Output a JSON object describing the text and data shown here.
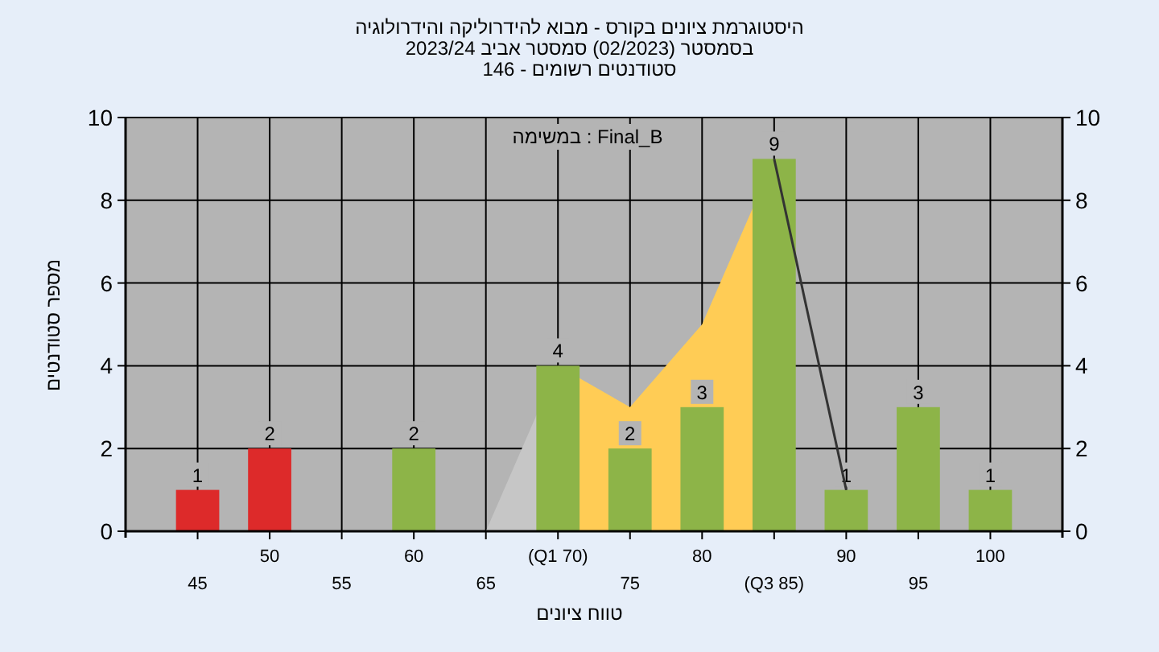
{
  "chart_data": {
    "type": "bar",
    "title": "היסטוגרמת ציונים בקורס - מבוא להידרוליקה והידרולוגיה",
    "subtitle": "בסמסטר  (02/2023)  סמסטר אביב 2023/24",
    "annotations": [
      "סטודנטים רשומים - 146",
      "במשימה : Final_B"
    ],
    "xlabel": "טווח ציונים",
    "ylabel": "מספר סטודנטים",
    "categories": [
      "45",
      "50",
      "55",
      "60",
      "65",
      "(Q1 70)",
      "75",
      "80",
      "(Q3 85)",
      "90",
      "95",
      "100"
    ],
    "series": [
      {
        "type": "area",
        "color": "#c6c6c6",
        "values": [
          null,
          null,
          null,
          null,
          0,
          4,
          null,
          null,
          null,
          null,
          null,
          null
        ]
      },
      {
        "type": "area",
        "color": "#ffcc55",
        "values": [
          null,
          null,
          null,
          null,
          null,
          4,
          3,
          5,
          9,
          null,
          null,
          null
        ]
      },
      {
        "colors": [
          "#dd2a2a",
          "#dd2a2a",
          "#8db448",
          "#8db448",
          "#8db448",
          "#8db448",
          "#8db448",
          "#8db448",
          "#8db448",
          "#8db448",
          "#8db448",
          "#8db448"
        ],
        "values": [
          1,
          2,
          0,
          2,
          0,
          4,
          2,
          3,
          9,
          1,
          3,
          1
        ],
        "value_labels": [
          "1",
          "2",
          null,
          "2",
          null,
          "4",
          "2",
          "3",
          "9",
          "1",
          "3",
          "1"
        ]
      },
      {
        "type": "line",
        "color": "#333333",
        "values": [
          null,
          null,
          null,
          null,
          null,
          null,
          null,
          null,
          9,
          1,
          null,
          null
        ]
      }
    ],
    "ylim": [
      0,
      10
    ],
    "yticks": [
      0,
      2,
      4,
      6,
      8,
      10
    ],
    "y2lim": [
      0,
      10
    ],
    "y2ticks": [
      0,
      2,
      4,
      6,
      8,
      10
    ],
    "grid": true
  }
}
